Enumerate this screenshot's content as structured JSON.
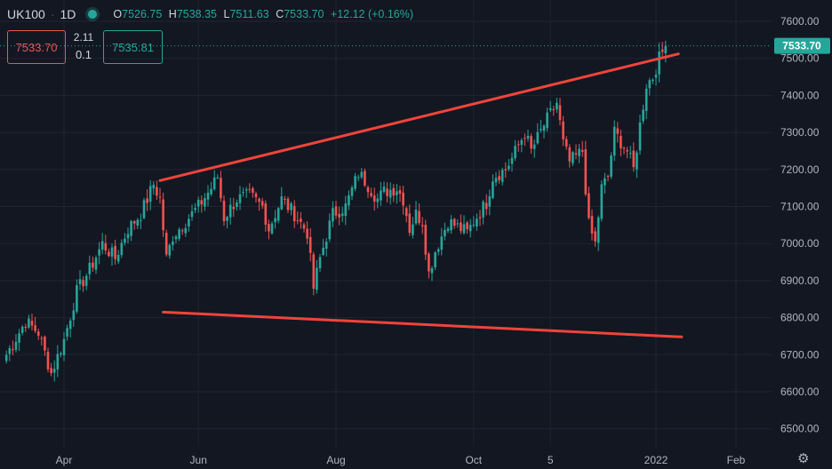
{
  "header": {
    "symbol": "UK100",
    "interval": "1D",
    "open_key": "O",
    "open": "7526.75",
    "high_key": "H",
    "high": "7538.35",
    "low_key": "L",
    "low": "7511.63",
    "close_key": "C",
    "close": "7533.70",
    "change": "+12.12 (+0.16%)"
  },
  "trade": {
    "sell": "7533.70",
    "spread": "2.11",
    "qty": "0.1",
    "buy": "7535.81"
  },
  "price_tag": "7533.70",
  "colors": {
    "up": "#26a69a",
    "down": "#ef5350",
    "trendline": "#f0443a",
    "background": "#131722"
  },
  "chart_data": {
    "type": "candlestick",
    "ylim": [
      6455,
      7655
    ],
    "y_ticks": [
      "7600.00",
      "7500.00",
      "7400.00",
      "7300.00",
      "7200.00",
      "7100.00",
      "7000.00",
      "6900.00",
      "6800.00",
      "6700.00",
      "6600.00",
      "6500.00"
    ],
    "x_ticks": [
      "Apr",
      "Jun",
      "Aug",
      "Oct",
      "5",
      "2022",
      "Feb"
    ],
    "x_tick_idx": [
      0,
      42,
      85,
      128,
      152,
      185,
      210
    ],
    "last_idx": 188,
    "anchors": [
      [
        -18,
        6700
      ],
      [
        -12,
        6790
      ],
      [
        -8,
        6760
      ],
      [
        -4,
        6650
      ],
      [
        0,
        6740
      ],
      [
        4,
        6870
      ],
      [
        8,
        6930
      ],
      [
        12,
        7000
      ],
      [
        16,
        6960
      ],
      [
        20,
        7040
      ],
      [
        24,
        7080
      ],
      [
        28,
        7160
      ],
      [
        30,
        7120
      ],
      [
        32,
        6960
      ],
      [
        34,
        7020
      ],
      [
        38,
        7060
      ],
      [
        42,
        7100
      ],
      [
        46,
        7150
      ],
      [
        48,
        7180
      ],
      [
        50,
        7070
      ],
      [
        54,
        7120
      ],
      [
        58,
        7130
      ],
      [
        62,
        7100
      ],
      [
        64,
        7040
      ],
      [
        68,
        7120
      ],
      [
        72,
        7080
      ],
      [
        76,
        7030
      ],
      [
        78,
        6880
      ],
      [
        80,
        6960
      ],
      [
        84,
        7080
      ],
      [
        88,
        7100
      ],
      [
        92,
        7190
      ],
      [
        94,
        7170
      ],
      [
        98,
        7120
      ],
      [
        100,
        7140
      ],
      [
        104,
        7150
      ],
      [
        106,
        7120
      ],
      [
        108,
        7040
      ],
      [
        110,
        7080
      ],
      [
        112,
        7060
      ],
      [
        114,
        6920
      ],
      [
        116,
        6980
      ],
      [
        120,
        7060
      ],
      [
        124,
        7040
      ],
      [
        126,
        7030
      ],
      [
        128,
        7060
      ],
      [
        132,
        7110
      ],
      [
        134,
        7180
      ],
      [
        138,
        7200
      ],
      [
        140,
        7230
      ],
      [
        144,
        7300
      ],
      [
        146,
        7250
      ],
      [
        150,
        7320
      ],
      [
        154,
        7380
      ],
      [
        156,
        7270
      ],
      [
        158,
        7220
      ],
      [
        162,
        7250
      ],
      [
        164,
        7050
      ],
      [
        166,
        7000
      ],
      [
        168,
        7150
      ],
      [
        170,
        7180
      ],
      [
        172,
        7300
      ],
      [
        176,
        7250
      ],
      [
        178,
        7200
      ],
      [
        180,
        7320
      ],
      [
        182,
        7430
      ],
      [
        184,
        7450
      ],
      [
        186,
        7500
      ],
      [
        188,
        7533.7
      ]
    ],
    "trendlines": [
      {
        "from": [
          30,
          7170
        ],
        "to": [
          192,
          7512
        ]
      },
      {
        "from": [
          31,
          6815
        ],
        "to": [
          193,
          6748
        ]
      }
    ]
  }
}
